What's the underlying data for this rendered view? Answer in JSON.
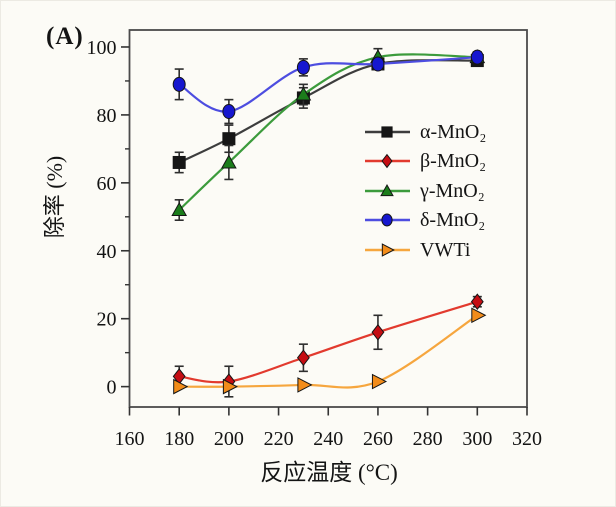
{
  "panel_label": "(A)",
  "frame_color": "#4b4b4b",
  "error_bar_color": "#2e2e2e",
  "text_color": "#141414",
  "background_color": "#fcfbf6",
  "chart_data": {
    "type": "line",
    "title": "",
    "xlabel": "反应温度 (°C)",
    "ylabel": "除率 (%)",
    "x": [
      180,
      200,
      230,
      260,
      300
    ],
    "x_ticks": [
      160,
      180,
      200,
      220,
      240,
      260,
      280,
      300,
      320
    ],
    "y_ticks": [
      0,
      20,
      40,
      60,
      80,
      100
    ],
    "y_minor_ticks": [
      10,
      30,
      50,
      70,
      90
    ],
    "xlim": [
      160,
      320
    ],
    "ylim": [
      -6,
      105
    ],
    "grid": false,
    "legend_position": "inside-right-middle",
    "error_bars": true,
    "series": [
      {
        "name": "alpha-MnO2",
        "label": "α-MnO₂",
        "marker": "square",
        "color": "#161616",
        "line_color": "#3d3d3d",
        "values": [
          66,
          73,
          85,
          95,
          96
        ],
        "errors": [
          3,
          4,
          3,
          1.5,
          1.5
        ]
      },
      {
        "name": "beta-MnO2",
        "label": "β-MnO₂",
        "marker": "diamond",
        "color": "#c50d13",
        "line_color": "#e23a2e",
        "values": [
          3,
          1.5,
          8.5,
          16,
          25
        ],
        "errors": [
          3,
          4.5,
          4,
          5,
          1.5
        ]
      },
      {
        "name": "gamma-MnO2",
        "label": "γ-MnO₂",
        "marker": "triangle-up",
        "color": "#1b7d1b",
        "line_color": "#3c9b3c",
        "values": [
          52,
          66,
          86,
          97,
          97
        ],
        "errors": [
          3,
          5,
          3,
          2.5,
          1.5
        ]
      },
      {
        "name": "delta-MnO2",
        "label": "δ-MnO₂",
        "marker": "circle",
        "color": "#1617cf",
        "line_color": "#4d4de0",
        "values": [
          89,
          81,
          94,
          95,
          97
        ],
        "errors": [
          4.5,
          3.5,
          2.5,
          1.5,
          1.5
        ]
      },
      {
        "name": "VWTi",
        "label": "VWTi",
        "marker": "triangle-right",
        "color": "#f28c1a",
        "line_color": "#f6a63e",
        "values": [
          0,
          0,
          0.5,
          1.5,
          21
        ],
        "errors": [
          0,
          0,
          0,
          0,
          0
        ]
      }
    ]
  }
}
